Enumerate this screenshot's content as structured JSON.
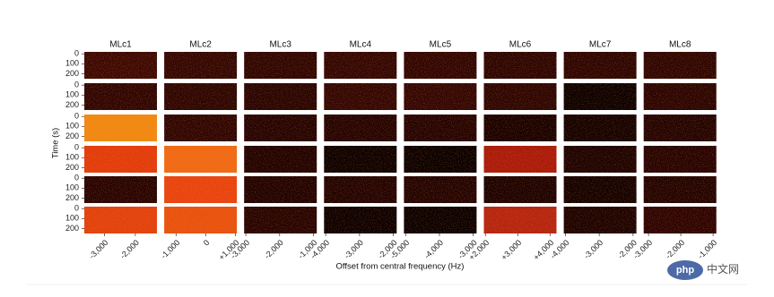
{
  "chart_data": {
    "type": "spectrogram-grid",
    "ylabel": "Time (s)",
    "xlabel": "Offset from central frequency (Hz)",
    "ylim": [
      -20,
      250
    ],
    "yticks": [
      0,
      100,
      200
    ],
    "columns": [
      {
        "title": "MLc1",
        "xlim": [
          -3650,
          -1300
        ],
        "xticks": [
          {
            "value": -3000,
            "label": "-3,000"
          },
          {
            "value": -2000,
            "label": "-2,000"
          }
        ]
      },
      {
        "title": "MLc2",
        "xlim": [
          -1400,
          1050
        ],
        "xticks": [
          {
            "value": -1000,
            "label": "-1,000"
          },
          0,
          {
            "value": 1000,
            "label": "+1,000"
          }
        ]
      },
      {
        "title": "MLc3",
        "xlim": [
          -3050,
          -900
        ],
        "xticks": [
          {
            "value": -3000,
            "label": "-3,000"
          },
          {
            "value": -2000,
            "label": "-2,000"
          },
          {
            "value": -1000,
            "label": "-1,000"
          }
        ]
      },
      {
        "title": "MLc4",
        "xlim": [
          -4050,
          -1900
        ],
        "xticks": [
          {
            "value": -4000,
            "label": "-4,000"
          },
          {
            "value": -3000,
            "label": "-3,000"
          },
          {
            "value": -2000,
            "label": "-2,000"
          }
        ]
      },
      {
        "title": "MLc5",
        "xlim": [
          -5050,
          -2900
        ],
        "xticks": [
          {
            "value": -5000,
            "label": "-5,000"
          },
          {
            "value": -4000,
            "label": "-4,000"
          },
          {
            "value": -3000,
            "label": "-3,000"
          }
        ]
      },
      {
        "title": "MLc6",
        "xlim": [
          1950,
          4200
        ],
        "xticks": [
          {
            "value": 2000,
            "label": "+2,000"
          },
          {
            "value": 3000,
            "label": "+3,000"
          },
          {
            "value": 4000,
            "label": "+4,000"
          }
        ]
      },
      {
        "title": "MLc7",
        "xlim": [
          -4050,
          -1900
        ],
        "xticks": [
          {
            "value": -4000,
            "label": "-4,000"
          },
          {
            "value": -3000,
            "label": "-3,000"
          },
          {
            "value": -2000,
            "label": "-2,000"
          }
        ]
      },
      {
        "title": "MLc8",
        "xlim": [
          -3150,
          -900
        ],
        "xticks": [
          {
            "value": -3000,
            "label": "-3,000"
          },
          {
            "value": -2000,
            "label": "-2,000"
          },
          {
            "value": -1000,
            "label": "-1,000"
          }
        ]
      }
    ],
    "colors": [
      [
        "#3a0803",
        "#300603",
        "#2c0502",
        "#300603",
        "#2e0502",
        "#2a0502",
        "#2a0502",
        "#2c0502"
      ],
      [
        "#2c0502",
        "#2a0502",
        "#260402",
        "#300603",
        "#300603",
        "#2a0502",
        "#0a0000",
        "#280402"
      ],
      [
        "#f08a12",
        "#2c0502",
        "#220302",
        "#220302",
        "#220302",
        "#160100",
        "#120100",
        "#200302"
      ],
      [
        "#e23c0c",
        "#f06a14",
        "#1e0201",
        "#0a0000",
        "#080000",
        "#a81a0a",
        "#1a0201",
        "#240302"
      ],
      [
        "#240302",
        "#e8440f",
        "#1e0201",
        "#200302",
        "#200302",
        "#1a0201",
        "#120100",
        "#200302"
      ],
      [
        "#e2420d",
        "#e8520f",
        "#240302",
        "#0a0000",
        "#080000",
        "#b42410",
        "#1a0201",
        "#2a0302"
      ]
    ],
    "watermark": {
      "logo": "php",
      "text": "中文网"
    }
  }
}
